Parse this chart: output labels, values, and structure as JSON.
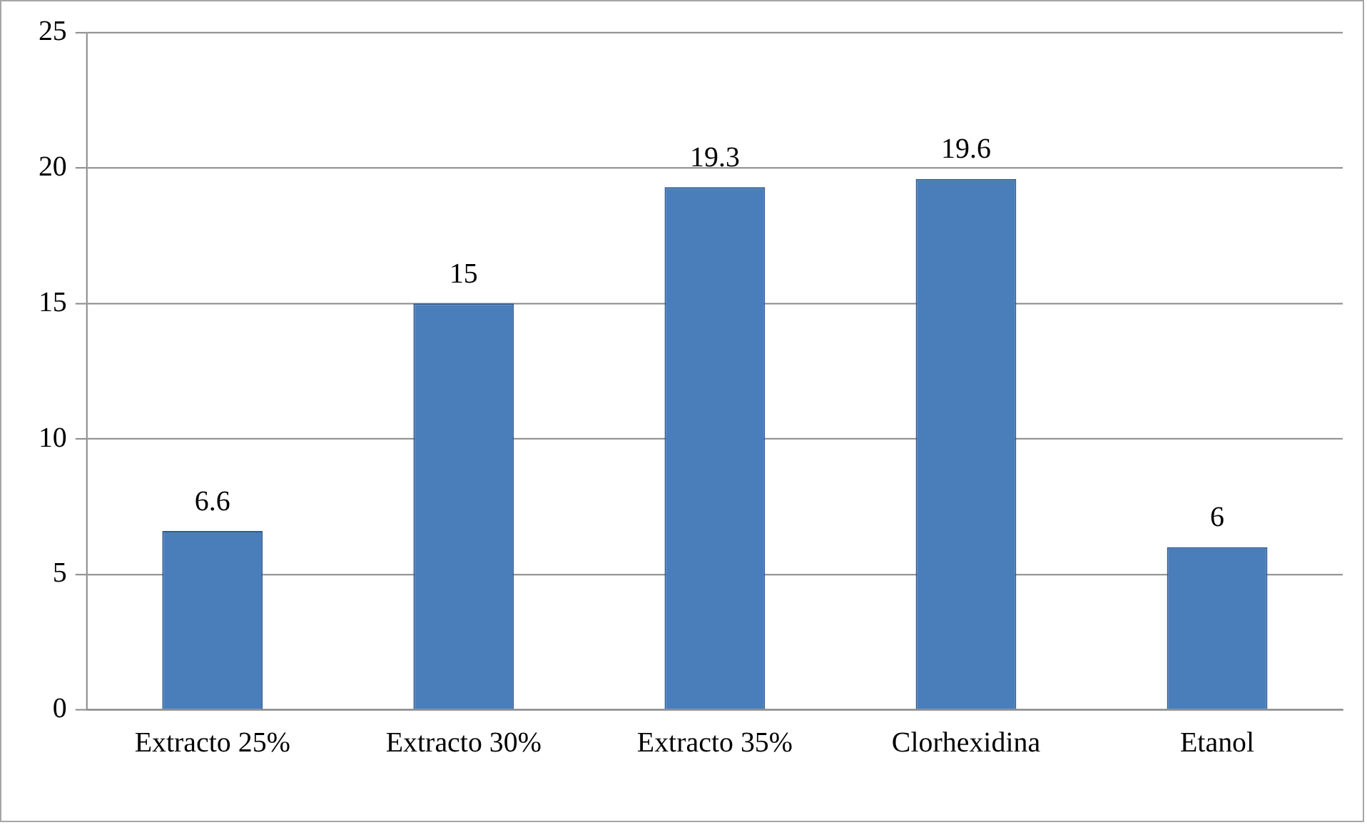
{
  "chart_data": {
    "type": "bar",
    "categories": [
      "Extracto 25%",
      "Extracto 30%",
      "Extracto 35%",
      "Clorhexidina",
      "Etanol"
    ],
    "values": [
      6.6,
      15,
      19.3,
      19.6,
      6
    ],
    "color": "#4a7ebb",
    "ylim": [
      0,
      25
    ],
    "yticks": [
      0,
      5,
      10,
      15,
      20,
      25
    ],
    "grid": "y",
    "data_labels": true,
    "legend": false
  }
}
